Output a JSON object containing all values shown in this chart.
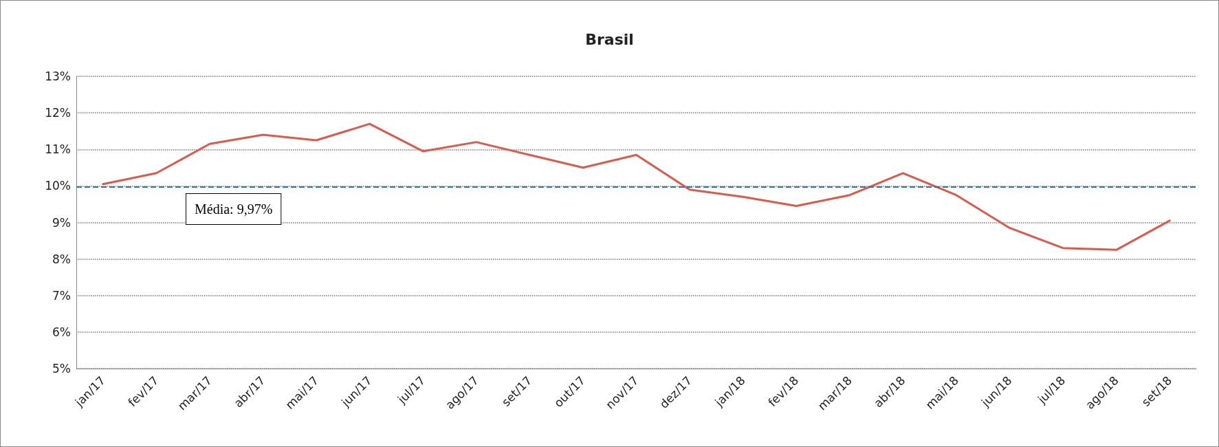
{
  "chart_data": {
    "type": "line",
    "title": "Brasil",
    "categories": [
      "jan/17",
      "fev/17",
      "mar/17",
      "abr/17",
      "mai/17",
      "jun/17",
      "jul/17",
      "ago/17",
      "set/17",
      "out/17",
      "nov/17",
      "dez/17",
      "jan/18",
      "fev/18",
      "mar/18",
      "abr/18",
      "mai/18",
      "jun/18",
      "jul/18",
      "ago/18",
      "set/18"
    ],
    "series": [
      {
        "color": "#e0584a",
        "values": [
          10.05,
          10.35,
          11.15,
          11.4,
          11.25,
          11.7,
          10.95,
          11.2,
          10.85,
          10.5,
          10.85,
          9.9,
          9.7,
          9.45,
          9.75,
          10.35,
          9.75,
          8.85,
          8.3,
          8.25,
          9.05
        ]
      }
    ],
    "ylim": [
      5,
      13
    ],
    "yticks": [
      {
        "value": 5,
        "label": "5%"
      },
      {
        "value": 6,
        "label": "6%"
      },
      {
        "value": 7,
        "label": "7%"
      },
      {
        "value": 8,
        "label": "8%"
      },
      {
        "value": 9,
        "label": "9%"
      },
      {
        "value": 10,
        "label": "10%"
      },
      {
        "value": 11,
        "label": "11%"
      },
      {
        "value": 12,
        "label": "12%"
      },
      {
        "value": 13,
        "label": "13%"
      }
    ],
    "grid": "y",
    "marker": "none",
    "line_style": "solid",
    "ref_lines": [
      {
        "axis": "y",
        "value": 9.97,
        "label": "Média: 9,97%",
        "color": "#2e75b6",
        "line_style": "dashed"
      }
    ]
  }
}
